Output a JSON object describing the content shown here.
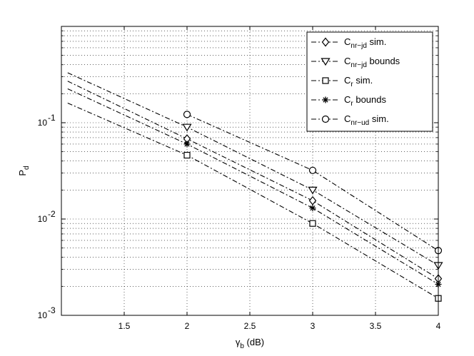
{
  "chart_data": {
    "type": "line",
    "xlabel": "γ_b (dB)",
    "ylabel": "P_d",
    "xlim": [
      1.0,
      4.0
    ],
    "ylim": [
      0.001,
      1.0
    ],
    "yscale": "log",
    "grid": true,
    "grid_style": "dotted",
    "legend_position": "top-right",
    "x_ticks": [
      1.5,
      2,
      2.5,
      3,
      3.5,
      4
    ],
    "x_tick_labels": [
      "1.5",
      "2",
      "2.5",
      "3",
      "3.5",
      "4"
    ],
    "y_ticks": [
      0.001,
      0.01,
      0.1
    ],
    "y_tick_labels": [
      [
        "10",
        "-3"
      ],
      [
        "10",
        "-2"
      ],
      [
        "10",
        "-1"
      ]
    ],
    "line_color": "#000000",
    "series": [
      {
        "name": "C_nr−jd sim.",
        "label_main": "C",
        "label_sub": "nr−jd",
        "label_rest": " sim.",
        "marker": "diamond",
        "line": [
          {
            "x": 1.05,
            "y": 0.27
          },
          {
            "x": 2,
            "y": 0.068
          },
          {
            "x": 3,
            "y": 0.0155
          },
          {
            "x": 4,
            "y": 0.0024
          }
        ],
        "points": [
          {
            "x": 2,
            "y": 0.068
          },
          {
            "x": 3,
            "y": 0.0155
          },
          {
            "x": 4,
            "y": 0.0024
          }
        ]
      },
      {
        "name": "C_nr−jd bounds",
        "label_main": "C",
        "label_sub": "nr−jd",
        "label_rest": " bounds",
        "marker": "triangle-down",
        "line": [
          {
            "x": 1.05,
            "y": 0.33
          },
          {
            "x": 2,
            "y": 0.09
          },
          {
            "x": 3,
            "y": 0.02
          },
          {
            "x": 4,
            "y": 0.0033
          }
        ],
        "points": [
          {
            "x": 2,
            "y": 0.09
          },
          {
            "x": 3,
            "y": 0.02
          },
          {
            "x": 4,
            "y": 0.0033
          }
        ]
      },
      {
        "name": "C_r sim.",
        "label_main": "C",
        "label_sub": "r",
        "label_rest": " sim.",
        "marker": "square",
        "line": [
          {
            "x": 1.05,
            "y": 0.16
          },
          {
            "x": 2,
            "y": 0.046
          },
          {
            "x": 3,
            "y": 0.009
          },
          {
            "x": 4,
            "y": 0.0015
          }
        ],
        "points": [
          {
            "x": 2,
            "y": 0.046
          },
          {
            "x": 3,
            "y": 0.009
          },
          {
            "x": 4,
            "y": 0.0015
          }
        ]
      },
      {
        "name": "C_r bounds",
        "label_main": "C",
        "label_sub": "r",
        "label_rest": " bounds",
        "marker": "star",
        "line": [
          {
            "x": 1.05,
            "y": 0.225
          },
          {
            "x": 2,
            "y": 0.06
          },
          {
            "x": 3,
            "y": 0.013
          },
          {
            "x": 4,
            "y": 0.0021
          }
        ],
        "points": [
          {
            "x": 2,
            "y": 0.06
          },
          {
            "x": 3,
            "y": 0.013
          },
          {
            "x": 4,
            "y": 0.0021
          }
        ]
      },
      {
        "name": "C_nr−ud sim.",
        "label_main": "C",
        "label_sub": "nr−ud",
        "label_rest": " sim.",
        "marker": "circle",
        "line": [
          {
            "x": 2,
            "y": 0.122
          },
          {
            "x": 3,
            "y": 0.032
          },
          {
            "x": 4,
            "y": 0.0047
          }
        ],
        "points": [
          {
            "x": 2,
            "y": 0.122
          },
          {
            "x": 3,
            "y": 0.032
          },
          {
            "x": 4,
            "y": 0.0047
          }
        ]
      }
    ]
  }
}
